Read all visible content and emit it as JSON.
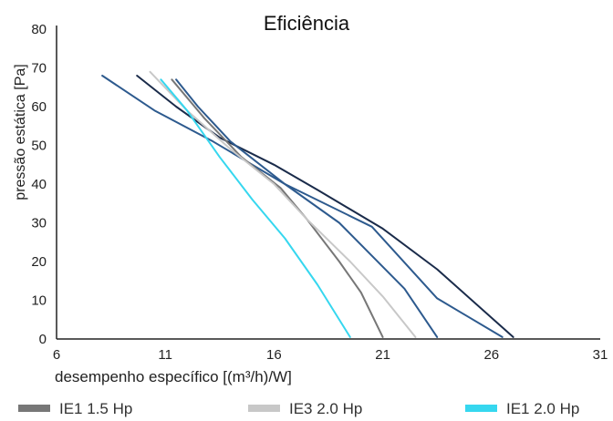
{
  "chart_data": {
    "type": "line",
    "title": "Eficiência",
    "xlabel": "desempenho específico [(m³/h)/W]",
    "ylabel": "pressão estática [Pa]",
    "xlim": [
      6,
      31
    ],
    "ylim": [
      0,
      80
    ],
    "x_ticks": [
      6,
      11,
      16,
      21,
      26,
      31
    ],
    "y_ticks": [
      0,
      10,
      20,
      30,
      40,
      50,
      60,
      70,
      80
    ],
    "grid": false,
    "legend_position": "bottom",
    "series": [
      {
        "name": "",
        "color": "#1a2b4a",
        "points": [
          [
            9.7,
            68
          ],
          [
            11.5,
            60
          ],
          [
            13.5,
            52
          ],
          [
            16,
            45
          ],
          [
            18,
            38.5
          ],
          [
            21,
            28.5
          ],
          [
            23.5,
            18
          ],
          [
            27,
            0.5
          ]
        ]
      },
      {
        "name": "",
        "color": "#2d5a8e",
        "points": [
          [
            8.1,
            68
          ],
          [
            10.5,
            59
          ],
          [
            13.2,
            51
          ],
          [
            16.5,
            40
          ],
          [
            20.5,
            29
          ],
          [
            23.5,
            10.5
          ],
          [
            26.5,
            0.5
          ]
        ]
      },
      {
        "name": "",
        "color": "#2d5a8e",
        "points": [
          [
            11.5,
            67
          ],
          [
            12.5,
            60
          ],
          [
            14,
            51
          ],
          [
            16.5,
            40
          ],
          [
            19,
            30
          ],
          [
            22,
            13
          ],
          [
            23.5,
            0.5
          ]
        ]
      },
      {
        "name": "IE1 1.5 Hp",
        "color": "#777777",
        "points": [
          [
            11.3,
            67
          ],
          [
            12.8,
            57
          ],
          [
            14.5,
            47
          ],
          [
            16.3,
            39
          ],
          [
            17.5,
            31
          ],
          [
            19,
            20
          ],
          [
            20,
            12
          ],
          [
            21,
            0.5
          ]
        ]
      },
      {
        "name": "IE3 2.0 Hp",
        "color": "#c8c8c8",
        "points": [
          [
            10.3,
            69
          ],
          [
            12,
            59
          ],
          [
            14,
            49
          ],
          [
            16,
            40
          ],
          [
            17.5,
            31
          ],
          [
            19.5,
            20
          ],
          [
            21,
            11
          ],
          [
            22.5,
            0.5
          ]
        ]
      },
      {
        "name": "IE1 2.0 Hp",
        "color": "#36d7ef",
        "points": [
          [
            10.8,
            67
          ],
          [
            12,
            59
          ],
          [
            13.5,
            47
          ],
          [
            15,
            36
          ],
          [
            16.5,
            26
          ],
          [
            18,
            14
          ],
          [
            19.5,
            0.5
          ]
        ]
      }
    ],
    "legend": [
      {
        "label": "IE1 1.5 Hp",
        "color": "#777777"
      },
      {
        "label": "IE3 2.0 Hp",
        "color": "#c8c8c8"
      },
      {
        "label": "IE1 2.0 Hp",
        "color": "#36d7ef"
      }
    ]
  }
}
